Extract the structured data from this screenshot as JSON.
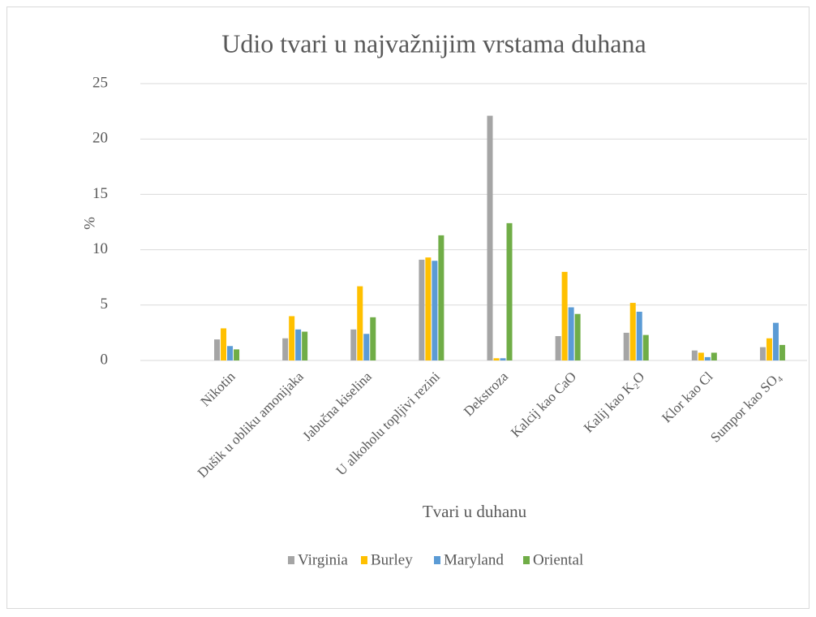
{
  "chart_data": {
    "type": "bar",
    "title": "Udio tvari u najvažnijim vrstama duhana",
    "xlabel": "Tvari u duhanu",
    "ylabel": "%",
    "categories": [
      "Nikotin",
      "Dušik u obliku amonijaka",
      "Jabučna kiselina",
      "U alkoholu topljivi rezini",
      "Dekstroza",
      "Kalcij kao CaO",
      "Kalij kao K₂O",
      "Klor kao Cl",
      "Sumpor kao SO₄"
    ],
    "series": [
      {
        "name": "Virginia",
        "color": "#a5a5a5",
        "values": [
          1.9,
          2.0,
          2.8,
          9.1,
          22.1,
          2.2,
          2.5,
          0.9,
          1.2
        ]
      },
      {
        "name": "Burley",
        "color": "#ffc000",
        "values": [
          2.9,
          4.0,
          6.7,
          9.3,
          0.2,
          8.0,
          5.2,
          0.7,
          2.0
        ]
      },
      {
        "name": "Maryland",
        "color": "#5b9bd5",
        "values": [
          1.3,
          2.8,
          2.4,
          9.0,
          0.2,
          4.8,
          4.4,
          0.3,
          3.4
        ]
      },
      {
        "name": "Oriental",
        "color": "#70ad47",
        "values": [
          1.0,
          2.6,
          3.9,
          11.3,
          12.4,
          4.2,
          2.3,
          0.7,
          1.4
        ]
      }
    ],
    "ylim": [
      0,
      25
    ],
    "yticks": [
      0,
      5,
      10,
      15,
      20,
      25
    ],
    "grid": true,
    "legend": "bottom"
  }
}
